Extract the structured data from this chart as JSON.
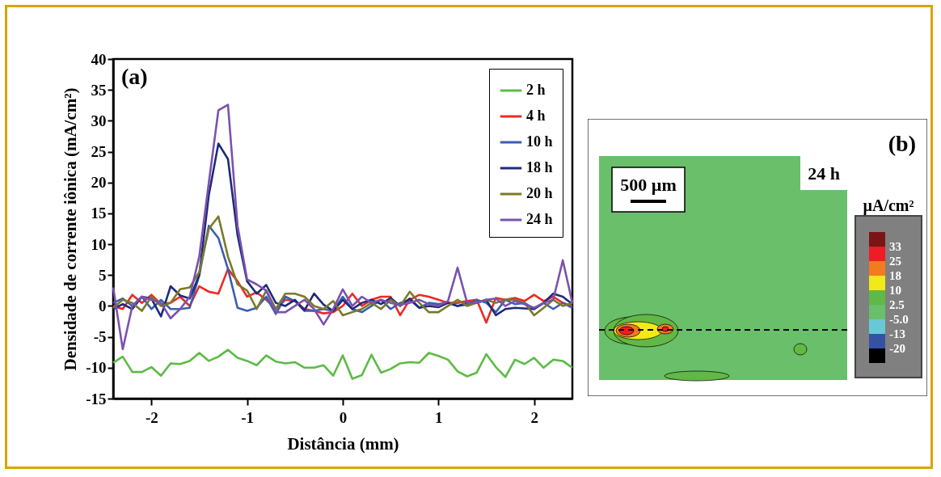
{
  "chart_data": [
    {
      "type": "line",
      "title": "(a)",
      "xlabel": "Distância (mm)",
      "ylabel": "Densidade de corrente iônica (mA/cm²)",
      "x": [
        -2.4,
        -2.3,
        -2.2,
        -2.1,
        -2.0,
        -1.9,
        -1.8,
        -1.7,
        -1.6,
        -1.5,
        -1.4,
        -1.3,
        -1.2,
        -1.1,
        -1.0,
        -0.9,
        -0.8,
        -0.7,
        -0.6,
        -0.5,
        -0.4,
        -0.3,
        -0.2,
        -0.1,
        0,
        0.1,
        0.2,
        0.3,
        0.4,
        0.5,
        0.6,
        0.7,
        0.8,
        0.9,
        1.0,
        1.1,
        1.2,
        1.3,
        1.4,
        1.5,
        1.6,
        1.7,
        1.8,
        1.9,
        2.0,
        2.1,
        2.2,
        2.3,
        2.4
      ],
      "series": [
        {
          "name": "2 h",
          "color": "#5dbb46",
          "values": [
            -9.2,
            -8.2,
            -10.7,
            -10.7,
            -9.9,
            -11.3,
            -9.3,
            -9.4,
            -8.9,
            -7.6,
            -8.9,
            -8.2,
            -7.1,
            -8.4,
            -8.9,
            -9.6,
            -8.0,
            -9.0,
            -9.3,
            -9.1,
            -10.0,
            -10.0,
            -9.6,
            -11.3,
            -8.0,
            -11.8,
            -11.2,
            -7.9,
            -10.8,
            -10.2,
            -9.3,
            -9.1,
            -9.2,
            -7.6,
            -8.1,
            -8.7,
            -10.6,
            -11.4,
            -10.8,
            -7.8,
            -9.9,
            -11.5,
            -8.7,
            -9.4,
            -8.4,
            -10.0,
            -8.7,
            -8.9,
            -10.0
          ]
        },
        {
          "name": "4 h",
          "color": "#ee2a24",
          "values": [
            0,
            -0.5,
            1.8,
            0.5,
            1.8,
            0.3,
            0.5,
            1.5,
            0,
            3.2,
            2.3,
            2,
            6,
            4,
            1.5,
            2.2,
            1,
            -0.5,
            1,
            0.8,
            -0.5,
            -0.8,
            -1.2,
            -1,
            0,
            2,
            0,
            1,
            1.5,
            1.5,
            -1.5,
            1,
            1.8,
            1.5,
            1,
            0.5,
            0.5,
            0.8,
            1,
            -2.7,
            1.3,
            1,
            1.3,
            0.8,
            1.8,
            0.8,
            1.5,
            0.5,
            0
          ]
        },
        {
          "name": "10 h",
          "color": "#3a5fb0",
          "values": [
            0.5,
            1.2,
            0,
            1.5,
            -0.5,
            1,
            -0.5,
            -0.5,
            -0.3,
            5,
            13,
            11,
            6,
            -0.3,
            -0.8,
            -0.3,
            1.5,
            -1.3,
            1.5,
            0.8,
            -0.8,
            -0.8,
            -0.5,
            -0.8,
            1.5,
            -0.5,
            -1,
            0,
            1,
            -0.5,
            0.5,
            1,
            -0.3,
            0.5,
            0.3,
            0.5,
            0,
            0.2,
            1,
            0.5,
            -1,
            1,
            0.3,
            0.5,
            -0.5,
            0.5,
            -0.5,
            0.5,
            -0.3
          ]
        },
        {
          "name": "18 h",
          "color": "#1f2a7a",
          "values": [
            -0.5,
            0.3,
            -0.5,
            1.5,
            1.2,
            -1.7,
            3.2,
            1.7,
            1.2,
            5,
            18,
            26.3,
            23.8,
            11.5,
            4,
            2,
            3.4,
            0.5,
            0,
            1,
            -0.7,
            2,
            0.2,
            -0.8,
            1,
            -0.5,
            0.5,
            1,
            0.3,
            1.3,
            0,
            1.2,
            -0.3,
            0,
            -0.2,
            0.5,
            0,
            0.5,
            0.5,
            1,
            -1.5,
            -0.5,
            -0.3,
            -0.4,
            -0.5,
            0.5,
            2,
            1.5,
            0.3
          ]
        },
        {
          "name": "20 h",
          "color": "#7a7a2a",
          "values": [
            -0.3,
            1,
            0.5,
            -0.8,
            1.5,
            0,
            0.5,
            2.7,
            3,
            5.5,
            12.5,
            14.5,
            8,
            3.5,
            2.5,
            -0.5,
            2.5,
            -0.5,
            2,
            2,
            1.5,
            0,
            -0.5,
            0.8,
            -1.5,
            -1,
            -0.5,
            0.5,
            -0.5,
            1,
            0,
            2.3,
            0.5,
            -1,
            -1,
            0,
            1,
            0,
            0.5,
            1,
            0.5,
            1,
            1,
            0.5,
            -1.5,
            -0.3,
            1,
            0,
            0.5
          ]
        },
        {
          "name": "24 h",
          "color": "#7b52ad",
          "values": [
            3,
            -7,
            0,
            1.5,
            1,
            0.5,
            -2,
            -0.5,
            1.5,
            8,
            20,
            31.7,
            32.6,
            13,
            4.3,
            3.5,
            2.5,
            -1,
            -1,
            0,
            1,
            -0.5,
            -3,
            -0.5,
            2.7,
            0,
            1.5,
            0.5,
            1,
            0.5,
            0.2,
            0.5,
            1,
            0.3,
            0,
            0.8,
            6.2,
            0.5,
            0.5,
            1,
            1.2,
            0,
            0.8,
            0.3,
            -0.3,
            0.5,
            1,
            7.4,
            0.5
          ]
        }
      ],
      "xlim": [
        -2.4,
        2.4
      ],
      "xticks": [
        -2,
        -1,
        0,
        1,
        2
      ],
      "ylim": [
        -15,
        40
      ],
      "yticks": [
        -15,
        -10,
        -5,
        0,
        5,
        10,
        15,
        20,
        25,
        30,
        35,
        40
      ],
      "legend": "top right"
    },
    {
      "type": "other",
      "title": "(b)",
      "clabel": "µA/cm²",
      "annotations": [
        "24 h",
        "500 µm",
        "33",
        "25",
        "18",
        "10",
        "2.5",
        "-5.0",
        "-13",
        "-20"
      ]
    }
  ]
}
